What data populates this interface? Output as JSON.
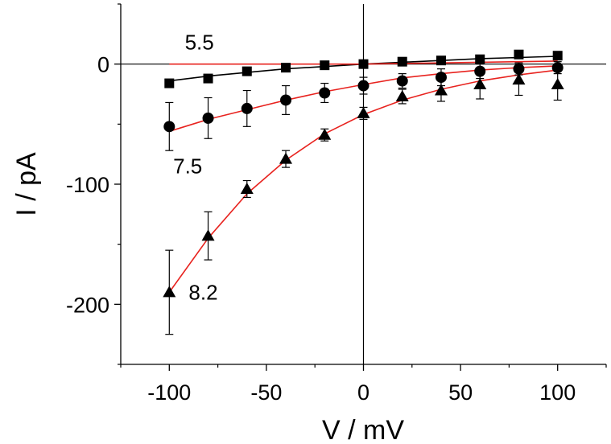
{
  "chart_data": {
    "type": "scatter",
    "xlabel": "V / mV",
    "ylabel": "I / pA",
    "xlim": [
      -125,
      125
    ],
    "ylim": [
      -250,
      50
    ],
    "xticks": [
      -100,
      -50,
      0,
      50,
      100
    ],
    "yticks": [
      0,
      -100,
      -200
    ],
    "x_tick_labels": [
      "-100",
      "-50",
      "0",
      "50",
      "100"
    ],
    "y_tick_labels": [
      "0",
      "-100",
      "-200"
    ],
    "annotations": [
      {
        "text": "5.5",
        "x": -92,
        "y": 12
      },
      {
        "text": "7.5",
        "x": -98,
        "y": -91
      },
      {
        "text": "8.2",
        "x": -90,
        "y": -196
      }
    ],
    "series": [
      {
        "marker": "square",
        "x": [
          -100,
          -80,
          -60,
          -40,
          -20,
          0,
          20,
          40,
          60,
          80,
          100
        ],
        "y": [
          -16,
          -12,
          -6,
          -3,
          -1,
          0,
          2,
          3,
          4,
          8,
          7
        ],
        "err": [
          0,
          0,
          0,
          0,
          0,
          0,
          0,
          0,
          0,
          0,
          0
        ]
      },
      {
        "marker": "circle",
        "x": [
          -100,
          -80,
          -60,
          -40,
          -20,
          0,
          20,
          40,
          60,
          80,
          100
        ],
        "y": [
          -52,
          -45,
          -37,
          -30,
          -24,
          -18,
          -14,
          -11,
          -6,
          -4,
          -3
        ],
        "err": [
          20,
          17,
          15,
          12,
          8,
          7,
          6,
          7,
          6,
          5,
          5
        ]
      },
      {
        "marker": "triangle",
        "x": [
          -100,
          -80,
          -60,
          -40,
          -20,
          0,
          20,
          40,
          60,
          80,
          100
        ],
        "y": [
          -190,
          -143,
          -104,
          -79,
          -59,
          -41,
          -27,
          -22,
          -17,
          -13,
          -17
        ],
        "err": [
          35,
          20,
          7,
          7,
          5,
          5,
          6,
          9,
          12,
          13,
          13
        ]
      }
    ],
    "fit_curves": [
      {
        "color": "#000000",
        "x": [
          -100,
          -80,
          -60,
          -40,
          -20,
          0,
          20,
          40,
          60,
          80,
          100
        ],
        "y": [
          -14,
          -10,
          -7,
          -4,
          -2,
          0,
          1.5,
          3,
          4.5,
          5.5,
          6.5
        ]
      },
      {
        "color": "#e8231f",
        "x": [
          -100,
          -80,
          -60,
          -40,
          -20,
          0,
          20,
          40,
          60,
          80,
          100
        ],
        "y": [
          0,
          0,
          0,
          0,
          0,
          0,
          0.5,
          1,
          1.5,
          2,
          2.5
        ]
      },
      {
        "color": "#e8231f",
        "x": [
          -100,
          -80,
          -60,
          -40,
          -20,
          0,
          20,
          40,
          60,
          80,
          100
        ],
        "y": [
          -56,
          -46,
          -38,
          -30,
          -23,
          -17,
          -11.5,
          -8,
          -5,
          -3,
          -1.5
        ]
      },
      {
        "color": "#e8231f",
        "x": [
          -100,
          -80,
          -60,
          -40,
          -20,
          0,
          20,
          40,
          60,
          80,
          100
        ],
        "y": [
          -190,
          -145,
          -108,
          -80,
          -58,
          -42,
          -30,
          -21,
          -14,
          -9,
          -5
        ]
      }
    ],
    "grid": false,
    "legend": "none"
  }
}
